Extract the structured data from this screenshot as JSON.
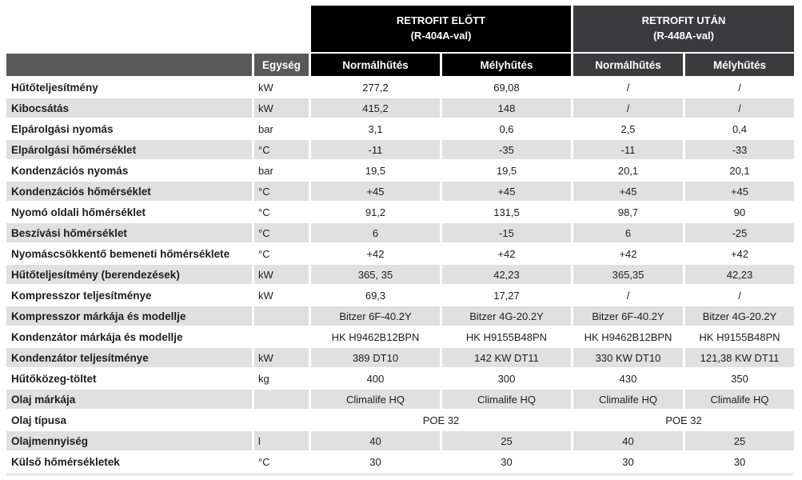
{
  "table": {
    "unit_header": "Egység",
    "groups": [
      {
        "title": "RETROFIT ELŐTT",
        "subtitle": "(R-404A-val)",
        "subcolumns": [
          "Normálhűtés",
          "Mélyhűtés"
        ]
      },
      {
        "title": "RETROFIT UTÁN",
        "subtitle": "(R-448A-val)",
        "subcolumns": [
          "Normálhűtés",
          "Mélyhűtés"
        ]
      }
    ],
    "rows": [
      {
        "label": "Hűtőteljesítmény",
        "unit": "kW",
        "values": [
          "277,2",
          "69,08",
          "/",
          "/"
        ]
      },
      {
        "label": "Kibocsátás",
        "unit": "kW",
        "values": [
          "415,2",
          "148",
          "/",
          "/"
        ]
      },
      {
        "label": "Elpárolgási nyomás",
        "unit": "bar",
        "values": [
          "3,1",
          "0,6",
          "2,5",
          "0,4"
        ]
      },
      {
        "label": "Elpárolgási hőmérséklet",
        "unit": "°C",
        "values": [
          "-11",
          "-35",
          "-11",
          "-33"
        ]
      },
      {
        "label": "Kondenzációs nyomás",
        "unit": "bar",
        "values": [
          "19,5",
          "19,5",
          "20,1",
          "20,1"
        ]
      },
      {
        "label": "Kondenzációs hőmérséklet",
        "unit": "°C",
        "values": [
          "+45",
          "+45",
          "+45",
          "+45"
        ]
      },
      {
        "label": "Nyomó oldali hőmérséklet",
        "unit": "°C",
        "values": [
          "91,2",
          "131,5",
          "98,7",
          "90"
        ]
      },
      {
        "label": "Beszívási hőmérséklet",
        "unit": "°C",
        "values": [
          "6",
          "-15",
          "6",
          "-25"
        ]
      },
      {
        "label": "Nyomáscsökkentő bemeneti hőmérséklete",
        "unit": "°C",
        "values": [
          "+42",
          "+42",
          "+42",
          "+42"
        ]
      },
      {
        "label": "Hűtőteljesítmény (berendezések)",
        "unit": "kW",
        "values": [
          "365, 35",
          "42,23",
          "365,35",
          "42,23"
        ]
      },
      {
        "label": "Kompresszor teljesítménye",
        "unit": "kW",
        "values": [
          "69,3",
          "17,27",
          "/",
          "/"
        ]
      },
      {
        "label": "Kompresszor márkája és modellje",
        "unit": "",
        "values": [
          "Bitzer 6F-40.2Y",
          "Bitzer 4G-20.2Y",
          "Bitzer 6F-40.2Y",
          "Bitzer 4G-20.2Y"
        ]
      },
      {
        "label": "Kondenzátor márkája és modellje",
        "unit": "",
        "values": [
          "HK H9462B12BPN",
          "HK H9155B48PN",
          "HK H9462B12BPN",
          "HK H9155B48PN"
        ]
      },
      {
        "label": "Kondenzátor teljesítménye",
        "unit": "kW",
        "values": [
          "389 DT10",
          "142 KW DT11",
          "330 KW DT10",
          "121,38 KW DT11"
        ]
      },
      {
        "label": "Hűtőközeg-töltet",
        "unit": "kg",
        "values": [
          "400",
          "300",
          "430",
          "350"
        ]
      },
      {
        "label": "Olaj márkája",
        "unit": "",
        "values": [
          "Climalife HQ",
          "Climalife HQ",
          "Climalife HQ",
          "Climalife HQ"
        ]
      },
      {
        "label": "Olaj típusa",
        "unit": "",
        "span_values": [
          "POE 32",
          "POE 32"
        ]
      },
      {
        "label": "Olajmennyiség",
        "unit": "l",
        "values": [
          "40",
          "25",
          "40",
          "25"
        ]
      },
      {
        "label": "Külső hőmérsékletek",
        "unit": "°C",
        "values": [
          "30",
          "30",
          "30",
          "30"
        ]
      }
    ],
    "colors": {
      "group_before_bg": "#000000",
      "group_after_bg": "#3b3b3d",
      "header_bar_bg": "#59595b",
      "zebra_row_bg": "#e0e0e0",
      "header_text": "#ffffff",
      "body_text": "#1d1d1d"
    }
  }
}
